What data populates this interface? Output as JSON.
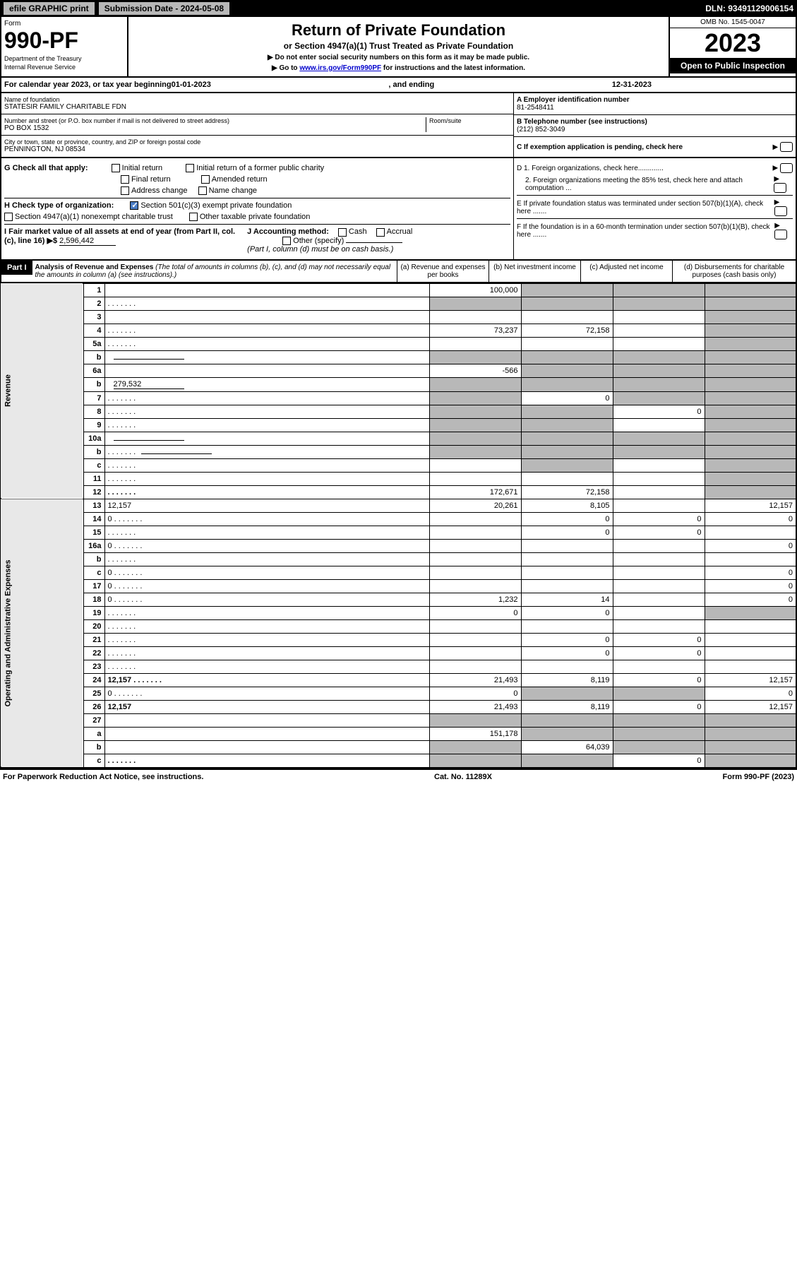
{
  "top": {
    "efile": "efile GRAPHIC print",
    "submission": "Submission Date - 2024-05-08",
    "dln": "DLN: 93491129006154"
  },
  "header": {
    "form_label": "Form",
    "form_number": "990-PF",
    "dept1": "Department of the Treasury",
    "dept2": "Internal Revenue Service",
    "title": "Return of Private Foundation",
    "subtitle": "or Section 4947(a)(1) Trust Treated as Private Foundation",
    "note1": "▶ Do not enter social security numbers on this form as it may be made public.",
    "note2_pre": "▶ Go to ",
    "note2_link": "www.irs.gov/Form990PF",
    "note2_post": " for instructions and the latest information.",
    "omb": "OMB No. 1545-0047",
    "year": "2023",
    "inspection": "Open to Public Inspection"
  },
  "cal_year": {
    "prefix": "For calendar year 2023, or tax year beginning ",
    "begin": "01-01-2023",
    "mid": " , and ending ",
    "end": "12-31-2023"
  },
  "entity": {
    "name_label": "Name of foundation",
    "name": "STATESIR FAMILY CHARITABLE FDN",
    "addr_label": "Number and street (or P.O. box number if mail is not delivered to street address)",
    "addr": "PO BOX 1532",
    "room_label": "Room/suite",
    "city_label": "City or town, state or province, country, and ZIP or foreign postal code",
    "city": "PENNINGTON, NJ  08534",
    "ein_label": "A Employer identification number",
    "ein": "81-2548411",
    "phone_label": "B Telephone number (see instructions)",
    "phone": "(212) 852-3049",
    "c_label": "C If exemption application is pending, check here"
  },
  "checks": {
    "g_label": "G Check all that apply:",
    "g_opts": [
      "Initial return",
      "Initial return of a former public charity",
      "Final return",
      "Amended return",
      "Address change",
      "Name change"
    ],
    "h_label": "H Check type of organization:",
    "h1": "Section 501(c)(3) exempt private foundation",
    "h2": "Section 4947(a)(1) nonexempt charitable trust",
    "h3": "Other taxable private foundation",
    "i_label": "I Fair market value of all assets at end of year (from Part II, col. (c), line 16) ▶$",
    "i_value": "2,596,442",
    "j_label": "J Accounting method:",
    "j_cash": "Cash",
    "j_accrual": "Accrual",
    "j_other": "Other (specify)",
    "j_note": "(Part I, column (d) must be on cash basis.)",
    "d1": "D 1. Foreign organizations, check here.............",
    "d2": "2. Foreign organizations meeting the 85% test, check here and attach computation ...",
    "e": "E If private foundation status was terminated under section 507(b)(1)(A), check here .......",
    "f": "F If the foundation is in a 60-month termination under section 507(b)(1)(B), check here .......",
    "arrow": "▶"
  },
  "part1": {
    "label": "Part I",
    "title": "Analysis of Revenue and Expenses",
    "note": " (The total of amounts in columns (b), (c), and (d) may not necessarily equal the amounts in column (a) (see instructions).)",
    "col_a": "(a) Revenue and expenses per books",
    "col_b": "(b) Net investment income",
    "col_c": "(c) Adjusted net income",
    "col_d": "(d) Disbursements for charitable purposes (cash basis only)"
  },
  "vert": {
    "revenue": "Revenue",
    "expenses": "Operating and Administrative Expenses"
  },
  "rows": [
    {
      "n": "1",
      "d": "",
      "a": "100,000",
      "b": "",
      "c": "",
      "sb": true,
      "sc": true,
      "sd": true
    },
    {
      "n": "2",
      "d": "",
      "dots": true,
      "a": "",
      "b": "",
      "c": "",
      "sa": true,
      "sb": true,
      "sc": true,
      "sd": true
    },
    {
      "n": "3",
      "d": "",
      "a": "",
      "b": "",
      "c": "",
      "sd": true
    },
    {
      "n": "4",
      "d": "",
      "dots": true,
      "a": "73,237",
      "b": "72,158",
      "c": "",
      "sd": true
    },
    {
      "n": "5a",
      "d": "",
      "dots": true,
      "a": "",
      "b": "",
      "c": "",
      "sd": true
    },
    {
      "n": "b",
      "d": "",
      "inline": true,
      "a": "",
      "b": "",
      "c": "",
      "sa": true,
      "sb": true,
      "sc": true,
      "sd": true
    },
    {
      "n": "6a",
      "d": "",
      "a": "-566",
      "b": "",
      "c": "",
      "sb": true,
      "sc": true,
      "sd": true
    },
    {
      "n": "b",
      "d": "",
      "inline": true,
      "iv": "279,532",
      "a": "",
      "b": "",
      "c": "",
      "sa": true,
      "sb": true,
      "sc": true,
      "sd": true
    },
    {
      "n": "7",
      "d": "",
      "dots": true,
      "a": "",
      "b": "0",
      "c": "",
      "sa": true,
      "sc": true,
      "sd": true
    },
    {
      "n": "8",
      "d": "",
      "dots": true,
      "a": "",
      "b": "",
      "c": "0",
      "sa": true,
      "sb": true,
      "sd": true
    },
    {
      "n": "9",
      "d": "",
      "dots": true,
      "a": "",
      "b": "",
      "c": "",
      "sa": true,
      "sb": true,
      "sd": true
    },
    {
      "n": "10a",
      "d": "",
      "inline": true,
      "a": "",
      "b": "",
      "c": "",
      "sa": true,
      "sb": true,
      "sc": true,
      "sd": true
    },
    {
      "n": "b",
      "d": "",
      "dots": true,
      "inline": true,
      "a": "",
      "b": "",
      "c": "",
      "sa": true,
      "sb": true,
      "sc": true,
      "sd": true
    },
    {
      "n": "c",
      "d": "",
      "dots": true,
      "a": "",
      "b": "",
      "c": "",
      "sb": true,
      "sd": true
    },
    {
      "n": "11",
      "d": "",
      "dots": true,
      "a": "",
      "b": "",
      "c": "",
      "sd": true
    },
    {
      "n": "12",
      "d": "",
      "dots": true,
      "bold": true,
      "a": "172,671",
      "b": "72,158",
      "c": "",
      "sd": true
    },
    {
      "n": "13",
      "d": "12,157",
      "a": "20,261",
      "b": "8,105",
      "c": ""
    },
    {
      "n": "14",
      "d": "0",
      "dots": true,
      "a": "",
      "b": "0",
      "c": "0"
    },
    {
      "n": "15",
      "d": "",
      "dots": true,
      "a": "",
      "b": "0",
      "c": "0"
    },
    {
      "n": "16a",
      "d": "0",
      "dots": true,
      "a": "",
      "b": "",
      "c": ""
    },
    {
      "n": "b",
      "d": "",
      "dots": true,
      "a": "",
      "b": "",
      "c": ""
    },
    {
      "n": "c",
      "d": "0",
      "dots": true,
      "a": "",
      "b": "",
      "c": ""
    },
    {
      "n": "17",
      "d": "0",
      "dots": true,
      "a": "",
      "b": "",
      "c": ""
    },
    {
      "n": "18",
      "d": "0",
      "dots": true,
      "a": "1,232",
      "b": "14",
      "c": ""
    },
    {
      "n": "19",
      "d": "",
      "dots": true,
      "a": "0",
      "b": "0",
      "c": "",
      "sd": true
    },
    {
      "n": "20",
      "d": "",
      "dots": true,
      "a": "",
      "b": "",
      "c": ""
    },
    {
      "n": "21",
      "d": "",
      "dots": true,
      "a": "",
      "b": "0",
      "c": "0"
    },
    {
      "n": "22",
      "d": "",
      "dots": true,
      "a": "",
      "b": "0",
      "c": "0"
    },
    {
      "n": "23",
      "d": "",
      "dots": true,
      "a": "",
      "b": "",
      "c": ""
    },
    {
      "n": "24",
      "d": "12,157",
      "dots": true,
      "bold": true,
      "a": "21,493",
      "b": "8,119",
      "c": "0"
    },
    {
      "n": "25",
      "d": "0",
      "dots": true,
      "a": "0",
      "b": "",
      "c": "",
      "sb": true,
      "sc": true
    },
    {
      "n": "26",
      "d": "12,157",
      "bold": true,
      "a": "21,493",
      "b": "8,119",
      "c": "0"
    },
    {
      "n": "27",
      "d": "",
      "a": "",
      "b": "",
      "c": "",
      "sa": true,
      "sb": true,
      "sc": true,
      "sd": true
    },
    {
      "n": "a",
      "d": "",
      "bold": true,
      "a": "151,178",
      "b": "",
      "c": "",
      "sb": true,
      "sc": true,
      "sd": true
    },
    {
      "n": "b",
      "d": "",
      "bold": true,
      "a": "",
      "b": "64,039",
      "c": "",
      "sa": true,
      "sc": true,
      "sd": true
    },
    {
      "n": "c",
      "d": "",
      "dots": true,
      "bold": true,
      "a": "",
      "b": "",
      "c": "0",
      "sa": true,
      "sb": true,
      "sd": true
    }
  ],
  "footer": {
    "left": "For Paperwork Reduction Act Notice, see instructions.",
    "mid": "Cat. No. 11289X",
    "right": "Form 990-PF (2023)"
  }
}
